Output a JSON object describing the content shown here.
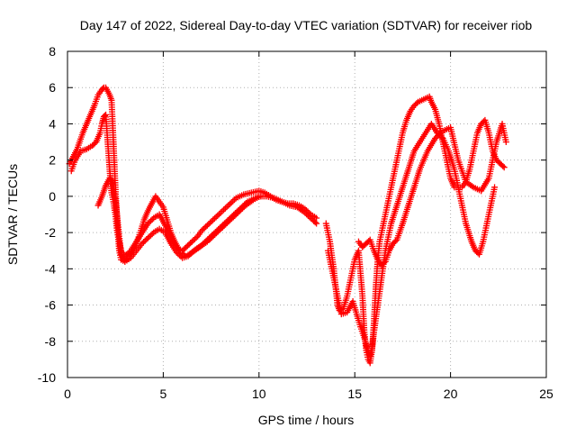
{
  "chart_data": {
    "type": "scatter",
    "title": "Day 147 of 2022, Sidereal Day-to-day VTEC variation (SDTVAR) for receiver riob",
    "xlabel": "GPS time / hours",
    "ylabel": "SDTVAR / TECUs",
    "xlim": [
      0,
      25
    ],
    "ylim": [
      -10,
      8
    ],
    "x_ticks": [
      "0",
      "5",
      "10",
      "15",
      "20",
      "25"
    ],
    "y_ticks": [
      "-10",
      "-8",
      "-6",
      "-4",
      "-2",
      "0",
      "2",
      "4",
      "6",
      "8"
    ],
    "grid": true,
    "legend": "none",
    "marker": "+",
    "color": "#ff0000",
    "series": [
      {
        "x": [
          0.1,
          0.3,
          0.5,
          0.8,
          1.0,
          1.2,
          1.4,
          1.6,
          1.8,
          1.9,
          2.0,
          2.1,
          2.2,
          2.3,
          2.4,
          2.5,
          2.6,
          2.7,
          2.8,
          3.0,
          3.2,
          3.4,
          3.6,
          3.8,
          4.0,
          4.2,
          4.4,
          4.6,
          4.8,
          5.0,
          5.2,
          5.4,
          5.6,
          5.8,
          6.0,
          6.2,
          6.5,
          6.8,
          7.0,
          7.3,
          7.6,
          8.0,
          8.4,
          8.8,
          9.2,
          9.6,
          10.0,
          10.3,
          10.6,
          10.9,
          11.2,
          11.5,
          11.8,
          12.1,
          12.4,
          12.7,
          13.0
        ],
        "y": [
          1.8,
          2.2,
          2.6,
          3.5,
          4.0,
          4.5,
          5.0,
          5.6,
          5.9,
          6.0,
          6.0,
          5.8,
          5.6,
          5.3,
          3.0,
          0.5,
          -1.5,
          -3.0,
          -3.5,
          -3.6,
          -3.3,
          -3.0,
          -2.6,
          -2.0,
          -1.3,
          -0.8,
          -0.4,
          0.0,
          -0.3,
          -0.6,
          -1.3,
          -2.0,
          -2.5,
          -2.9,
          -3.0,
          -2.8,
          -2.5,
          -2.2,
          -1.9,
          -1.6,
          -1.3,
          -0.9,
          -0.5,
          -0.1,
          0.1,
          0.2,
          0.3,
          0.2,
          0.0,
          -0.2,
          -0.3,
          -0.4,
          -0.4,
          -0.5,
          -0.7,
          -1.0,
          -1.2
        ]
      },
      {
        "x": [
          0.2,
          0.4,
          0.7,
          1.0,
          1.3,
          1.5,
          1.7,
          1.8,
          1.9,
          2.0,
          2.1,
          2.2,
          2.3,
          2.4,
          2.5,
          2.6,
          2.8,
          3.0,
          3.3,
          3.6,
          3.9,
          4.2,
          4.5,
          4.8,
          5.0,
          5.3,
          5.6,
          5.9,
          6.2,
          6.5,
          6.9,
          7.3,
          7.7,
          8.1,
          8.5,
          8.9,
          9.3,
          9.7,
          10.0,
          10.4,
          10.8,
          11.2,
          11.6,
          12.0,
          12.4,
          12.8,
          13.0
        ],
        "y": [
          1.4,
          2.0,
          2.5,
          2.6,
          2.8,
          3.0,
          3.5,
          4.0,
          4.4,
          4.5,
          3.0,
          1.5,
          0.2,
          -0.3,
          -1.0,
          -2.0,
          -3.0,
          -3.3,
          -3.0,
          -2.5,
          -2.0,
          -1.5,
          -1.2,
          -1.0,
          -1.4,
          -2.0,
          -2.6,
          -3.1,
          -3.3,
          -3.1,
          -2.8,
          -2.5,
          -2.1,
          -1.7,
          -1.3,
          -0.9,
          -0.5,
          -0.2,
          0.0,
          0.0,
          -0.1,
          -0.3,
          -0.5,
          -0.6,
          -0.9,
          -1.3,
          -1.5
        ]
      },
      {
        "x": [
          1.6,
          1.8,
          1.9,
          2.0,
          2.1,
          2.2,
          2.3,
          2.4,
          2.5,
          2.6,
          2.7,
          2.8,
          3.0,
          3.3,
          3.6,
          3.9,
          4.2,
          4.5,
          4.8,
          5.1,
          5.4,
          5.7,
          6.0,
          6.3,
          6.6,
          7.0,
          7.4,
          7.8,
          8.2,
          8.6,
          9.0,
          9.4,
          9.8,
          10.1
        ],
        "y": [
          -0.5,
          0.0,
          0.3,
          0.6,
          0.8,
          1.0,
          0.9,
          0.5,
          -0.2,
          -1.2,
          -2.2,
          -3.2,
          -3.6,
          -3.4,
          -3.0,
          -2.6,
          -2.3,
          -2.0,
          -1.8,
          -2.0,
          -2.6,
          -3.1,
          -3.4,
          -3.3,
          -3.0,
          -2.7,
          -2.3,
          -1.9,
          -1.5,
          -1.1,
          -0.7,
          -0.3,
          -0.1,
          0.0
        ]
      },
      {
        "x": [
          13.5,
          13.7,
          13.9,
          14.0,
          14.1,
          14.2,
          14.4,
          14.6,
          14.8,
          15.0,
          15.2,
          15.4,
          15.5,
          15.6,
          15.7,
          15.8,
          15.9,
          16.0,
          16.1,
          16.2,
          16.3,
          16.5,
          16.7,
          16.9,
          17.1,
          17.3,
          17.5,
          17.7,
          17.9,
          18.1,
          18.3,
          18.5,
          18.7,
          18.9,
          19.0,
          19.2,
          19.4,
          19.6,
          19.8,
          20.0,
          20.2,
          20.4,
          20.6,
          20.8,
          21.0,
          21.2,
          21.4,
          21.6,
          21.8,
          22.0,
          22.2,
          22.4,
          22.6,
          22.8
        ],
        "y": [
          -1.5,
          -2.5,
          -4.0,
          -5.0,
          -6.0,
          -6.3,
          -6.2,
          -5.5,
          -4.5,
          -3.5,
          -3.0,
          -5.5,
          -7.5,
          -8.5,
          -9.0,
          -9.2,
          -8.5,
          -7.0,
          -5.0,
          -3.5,
          -2.5,
          -1.5,
          -0.5,
          0.5,
          1.5,
          2.5,
          3.5,
          4.2,
          4.7,
          5.0,
          5.2,
          5.3,
          5.4,
          5.5,
          5.2,
          4.8,
          4.0,
          3.0,
          2.0,
          1.0,
          0.5,
          0.5,
          0.5,
          0.8,
          1.5,
          2.5,
          3.5,
          4.0,
          4.2,
          3.5,
          2.5,
          2.0,
          1.8,
          1.6
        ]
      },
      {
        "x": [
          13.6,
          13.9,
          14.1,
          14.3,
          14.6,
          14.9,
          15.1,
          15.3,
          15.5,
          15.6,
          15.7,
          15.8,
          15.9,
          16.0,
          16.2,
          16.4,
          16.6,
          16.9,
          17.2,
          17.5,
          17.8,
          18.1,
          18.4,
          18.7,
          19.0,
          19.3,
          19.6,
          19.9,
          20.2,
          20.5,
          20.8,
          21.1,
          21.3,
          21.5,
          21.7,
          21.9,
          22.1,
          22.3
        ],
        "y": [
          -3.0,
          -4.5,
          -5.5,
          -6.5,
          -6.4,
          -5.8,
          -6.5,
          -7.2,
          -7.8,
          -8.2,
          -8.6,
          -8.8,
          -8.4,
          -7.5,
          -6.0,
          -4.5,
          -3.0,
          -1.5,
          -0.5,
          0.5,
          1.5,
          2.5,
          3.0,
          3.5,
          4.0,
          3.5,
          3.2,
          2.5,
          1.5,
          0.0,
          -1.5,
          -2.5,
          -3.0,
          -3.2,
          -2.5,
          -1.5,
          -0.5,
          0.5
        ]
      },
      {
        "x": [
          15.2,
          15.4,
          15.6,
          15.8,
          16.0,
          16.2,
          16.4,
          16.6,
          16.8,
          17.0,
          17.2,
          17.5,
          17.8,
          18.1,
          18.4,
          18.8,
          19.2,
          19.6,
          20.0,
          20.4,
          20.8,
          21.2,
          21.6,
          22.0,
          22.4,
          22.7,
          22.9
        ],
        "y": [
          -2.5,
          -2.8,
          -2.6,
          -2.4,
          -3.0,
          -3.5,
          -3.8,
          -3.6,
          -3.0,
          -2.6,
          -2.4,
          -1.5,
          -0.5,
          0.5,
          1.5,
          2.5,
          3.2,
          3.6,
          3.8,
          2.0,
          0.8,
          0.5,
          0.3,
          1.0,
          3.0,
          4.0,
          3.0
        ]
      }
    ]
  }
}
